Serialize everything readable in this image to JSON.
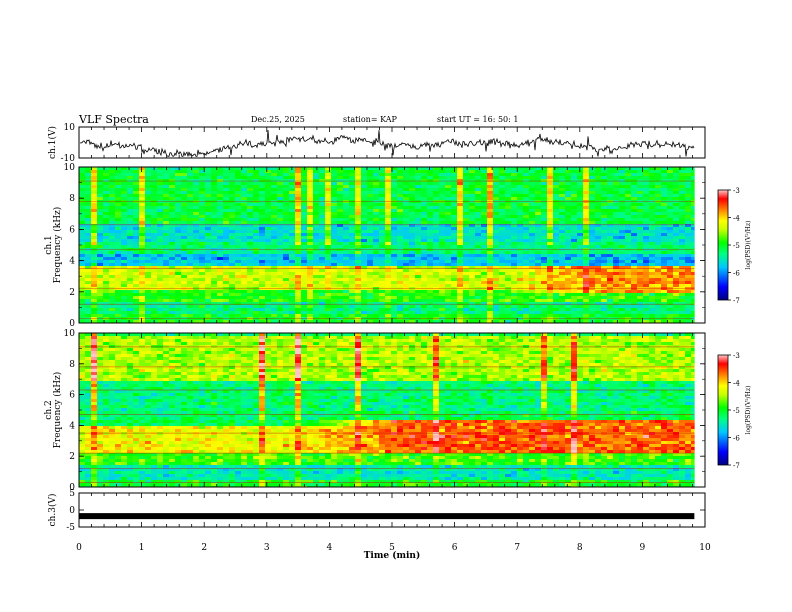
{
  "header": {
    "title": "VLF Spectra",
    "date": "Dec.25, 2025",
    "station": "station= KAP",
    "start": "start  UT =   16: 50: 1"
  },
  "chart_data": [
    {
      "id": "ch1-waveform",
      "type": "line",
      "ylabel": "ch.1(V)",
      "ylim": [
        -10,
        10
      ],
      "yticks": [
        "10",
        "-10"
      ],
      "xlim": [
        0,
        9.83
      ],
      "description_series": "voltage waveform, values range roughly -5 to 6 V"
    },
    {
      "id": "ch1-spectrogram",
      "type": "heatmap",
      "ylabel": "ch.1\nFrequency (kHz)",
      "ylabel_lines": [
        "ch.1",
        "Frequency (kHz)"
      ],
      "ylim": [
        0,
        10
      ],
      "yticks": [
        "0",
        "2",
        "4",
        "6",
        "8",
        "10"
      ],
      "xlim": [
        0,
        9.83
      ],
      "colorbar": {
        "label": "log(PSD)(V²/Hz)",
        "ticks": [
          "-3",
          "-4",
          "-5",
          "-6",
          "-7"
        ],
        "range": [
          -7,
          -3
        ]
      },
      "bands": [
        {
          "fmin": 0,
          "fmax": 0.6,
          "value": -5.0
        },
        {
          "fmin": 0.6,
          "fmax": 1.5,
          "value": -5.3
        },
        {
          "fmin": 1.5,
          "fmax": 2.2,
          "value": -4.9
        },
        {
          "fmin": 2.2,
          "fmax": 3.8,
          "value": -4.4
        },
        {
          "fmin": 3.8,
          "fmax": 4.6,
          "value": -5.8
        },
        {
          "fmin": 4.6,
          "fmax": 5.2,
          "value": -5.3
        },
        {
          "fmin": 5.2,
          "fmax": 6.5,
          "value": -5.6
        },
        {
          "fmin": 6.5,
          "fmax": 10,
          "value": -5.1
        }
      ],
      "late_enhancement": {
        "t_from": 6.6,
        "fmin": 2.0,
        "fmax": 3.8,
        "value": -3.8
      }
    },
    {
      "id": "ch2-spectrogram",
      "type": "heatmap",
      "ylabel": "ch.2\nFrequency (kHz)",
      "ylabel_lines": [
        "ch.2",
        "Frequency (kHz)"
      ],
      "ylim": [
        0,
        10
      ],
      "yticks": [
        "0",
        "2",
        "4",
        "6",
        "8",
        "10"
      ],
      "xlim": [
        0,
        9.83
      ],
      "colorbar": {
        "label": "log(PSD)(V²/Hz)",
        "ticks": [
          "-3",
          "-4",
          "-5",
          "-6",
          "-7"
        ],
        "range": [
          -7,
          -3
        ]
      },
      "bands": [
        {
          "fmin": 0,
          "fmax": 0.5,
          "value": -5.0
        },
        {
          "fmin": 0.5,
          "fmax": 1.5,
          "value": -5.5
        },
        {
          "fmin": 1.5,
          "fmax": 2.4,
          "value": -4.8
        },
        {
          "fmin": 2.4,
          "fmax": 4.0,
          "value": -4.2
        },
        {
          "fmin": 4.0,
          "fmax": 5.0,
          "value": -5.2
        },
        {
          "fmin": 5.0,
          "fmax": 7.0,
          "value": -5.3
        },
        {
          "fmin": 7.0,
          "fmax": 10,
          "value": -4.5
        }
      ],
      "late_enhancement": {
        "t_from": 3.5,
        "fmin": 2.4,
        "fmax": 4.4,
        "value": -3.6
      }
    },
    {
      "id": "ch3-level",
      "type": "line",
      "ylabel": "ch.3(V)",
      "ylim": [
        -5,
        5
      ],
      "yticks": [
        "5",
        "0",
        "-5"
      ],
      "xlim": [
        0,
        9.83
      ],
      "level": -1.8
    }
  ],
  "x_axis": {
    "label": "Time (min)",
    "range": [
      0,
      10
    ],
    "ticks": [
      "0",
      "1",
      "2",
      "3",
      "4",
      "5",
      "6",
      "7",
      "8",
      "9",
      "10"
    ]
  },
  "colors": {
    "scale": [
      "#00008b",
      "#0000ff",
      "#00aaff",
      "#00ffaa",
      "#00ff00",
      "#aaff00",
      "#ffff00",
      "#ff8800",
      "#ff0000",
      "#ffc0c0"
    ]
  }
}
